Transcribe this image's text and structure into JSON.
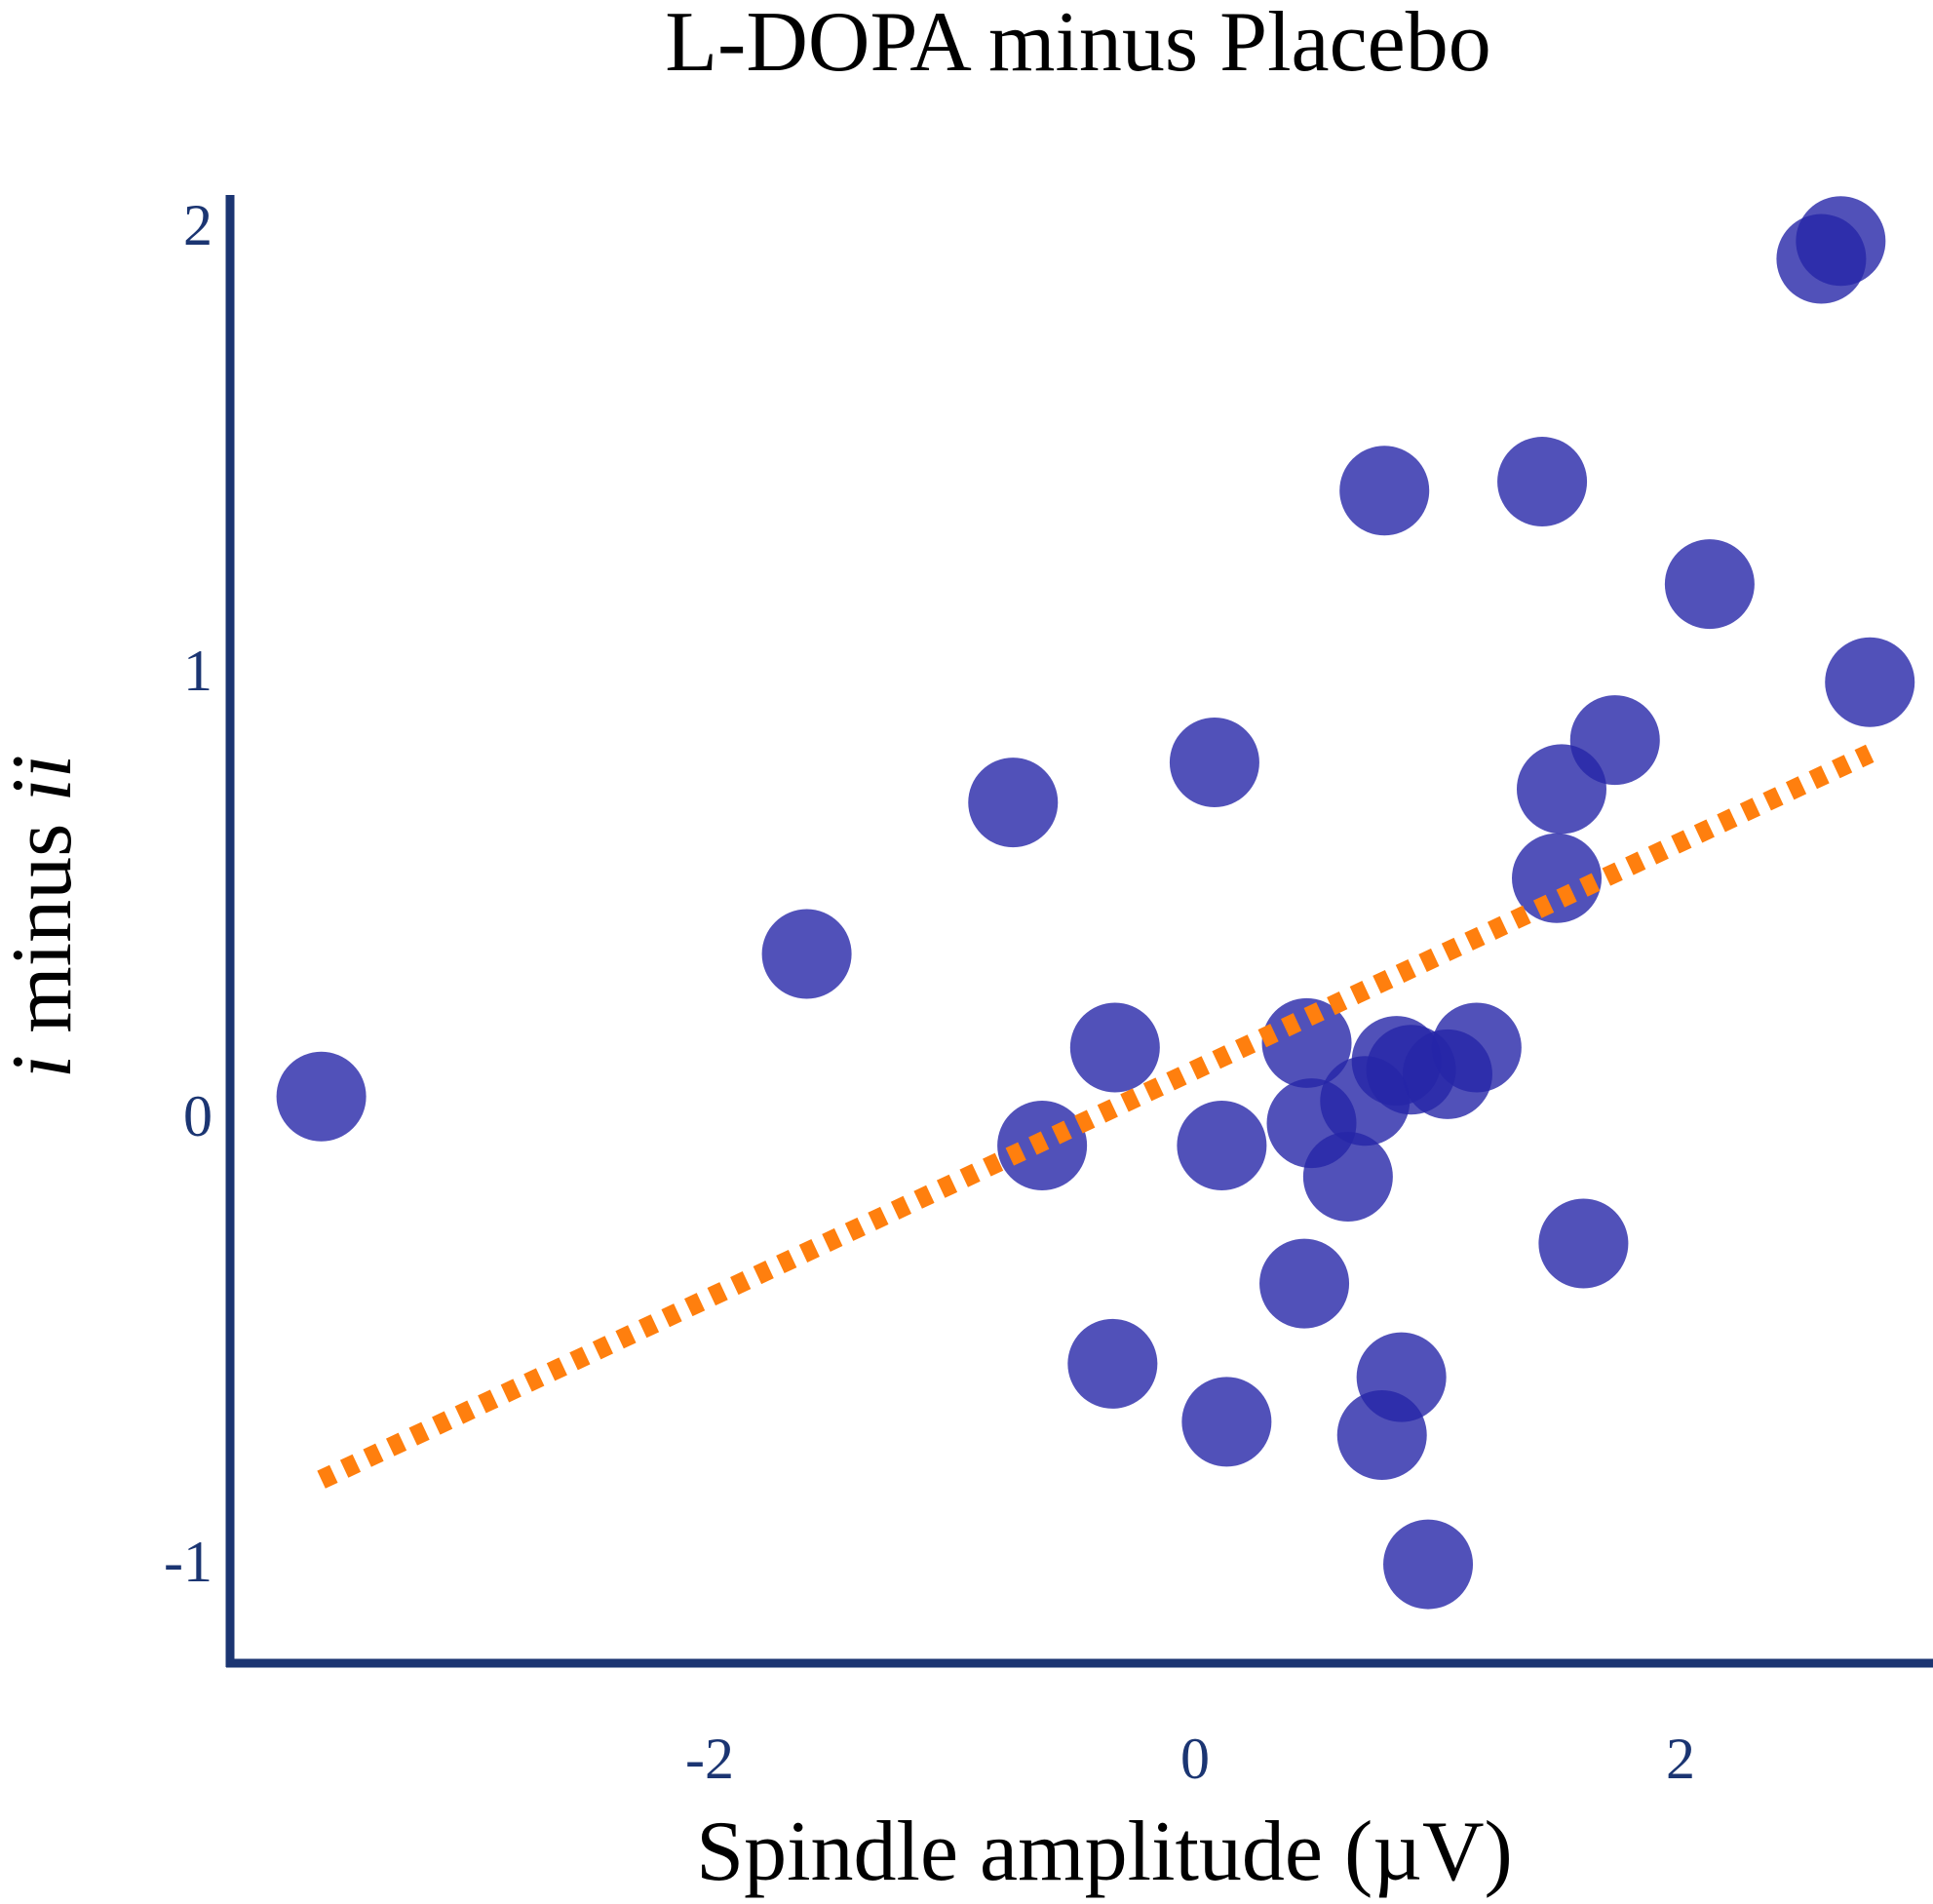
{
  "chart_data": {
    "type": "scatter",
    "title": "L-DOPA minus Placebo",
    "xlabel": "Spindle amplitude (µV)",
    "ylabel": {
      "italic_prefix": "i",
      "middle": " minus ",
      "italic_suffix": "ii"
    },
    "xlim": [
      -3.9,
      3.0
    ],
    "ylim": [
      -1.25,
      2.05
    ],
    "xticks": [
      {
        "value": -2,
        "label": "-2"
      },
      {
        "value": 0,
        "label": "0"
      },
      {
        "value": 2,
        "label": "2"
      }
    ],
    "yticks": [
      {
        "value": -1,
        "label": "-1"
      },
      {
        "value": 0,
        "label": "0"
      },
      {
        "value": 1,
        "label": "1"
      },
      {
        "value": 2,
        "label": "2"
      }
    ],
    "points": [
      {
        "x": -3.6,
        "y": 0.04
      },
      {
        "x": -1.6,
        "y": 0.36
      },
      {
        "x": -0.75,
        "y": 0.7
      },
      {
        "x": -0.63,
        "y": -0.07
      },
      {
        "x": -0.33,
        "y": 0.15
      },
      {
        "x": -0.34,
        "y": -0.56
      },
      {
        "x": 0.08,
        "y": 0.79
      },
      {
        "x": 0.11,
        "y": -0.07
      },
      {
        "x": 0.13,
        "y": -0.69
      },
      {
        "x": 0.46,
        "y": 0.16
      },
      {
        "x": 0.48,
        "y": -0.02
      },
      {
        "x": 0.45,
        "y": -0.38
      },
      {
        "x": 0.63,
        "y": -0.14
      },
      {
        "x": 0.7,
        "y": 0.03
      },
      {
        "x": 0.78,
        "y": 1.4
      },
      {
        "x": 0.83,
        "y": 0.12
      },
      {
        "x": 0.89,
        "y": 0.1
      },
      {
        "x": 0.85,
        "y": -0.59
      },
      {
        "x": 0.77,
        "y": -0.72
      },
      {
        "x": 0.96,
        "y": -1.01
      },
      {
        "x": 1.04,
        "y": 0.09
      },
      {
        "x": 1.16,
        "y": 0.15
      },
      {
        "x": 1.43,
        "y": 1.42
      },
      {
        "x": 1.51,
        "y": 0.73
      },
      {
        "x": 1.49,
        "y": 0.53
      },
      {
        "x": 1.6,
        "y": -0.29
      },
      {
        "x": 1.73,
        "y": 0.84
      },
      {
        "x": 2.12,
        "y": 1.19
      },
      {
        "x": 2.58,
        "y": 1.92
      },
      {
        "x": 2.66,
        "y": 1.96
      },
      {
        "x": 2.78,
        "y": 0.97
      }
    ],
    "trendline": {
      "x": [
        -3.6,
        2.78
      ],
      "y": [
        -0.82,
        0.81
      ]
    },
    "colors": {
      "point": "#2626A8",
      "trendline": "#FF7F0E",
      "axis": "#1B3572",
      "tick_label": "#1B3572",
      "title": "#000000"
    }
  }
}
